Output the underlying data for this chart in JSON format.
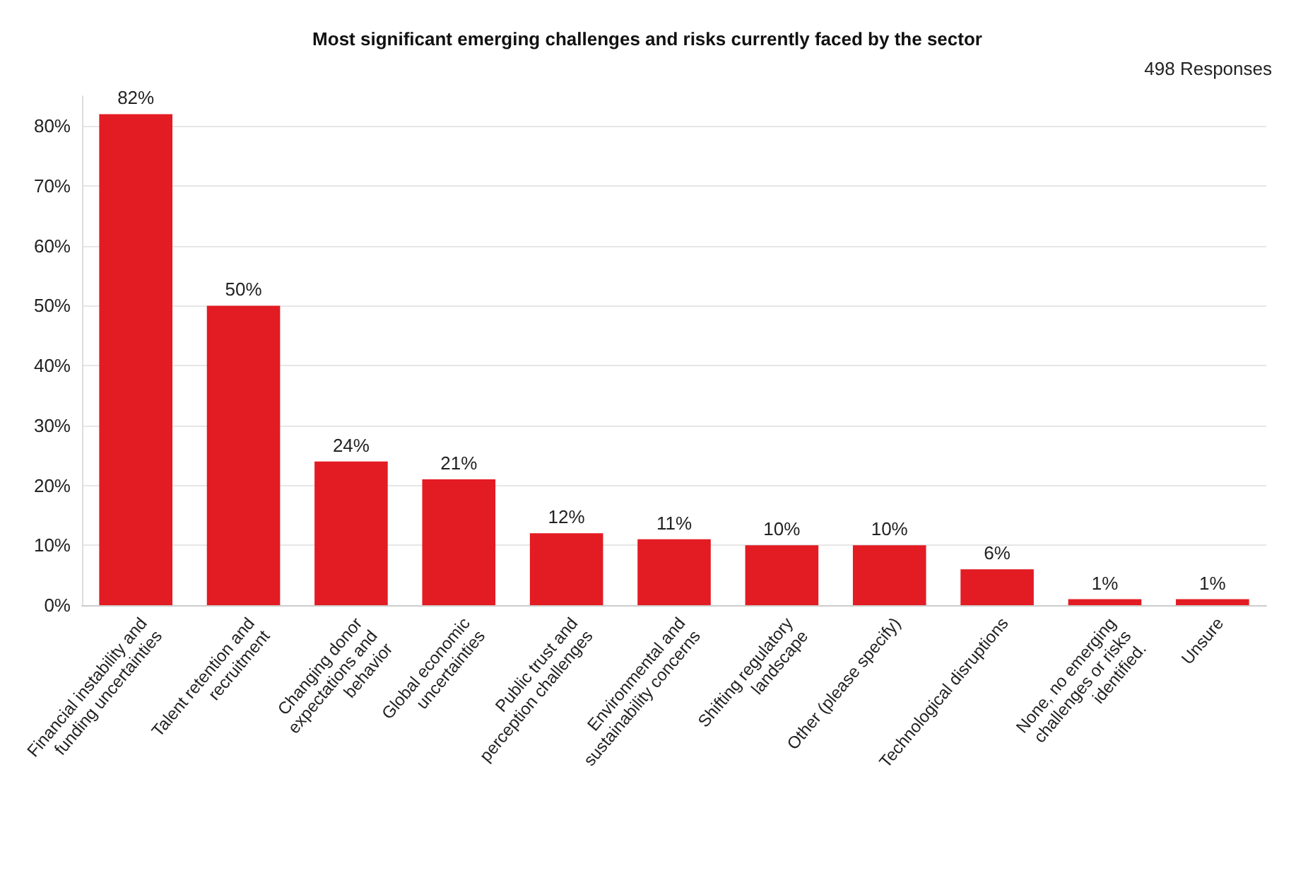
{
  "chart_data": {
    "type": "bar",
    "title": "Most significant emerging challenges and risks currently faced by the sector",
    "annotations": [
      "498 Responses"
    ],
    "categories": [
      "Financial instability and\nfunding uncertainties",
      "Talent retention and\nrecruitment",
      "Changing donor\nexpectations and\nbehavior",
      "Global economic\nuncertainties",
      "Public trust and\nperception challenges",
      "Environmental and\nsustainability concerns",
      "Shifting regulatory\nlandscape",
      "Other (please specify)",
      "Technological disruptions",
      "None, no emerging\nchallenges or risks\nidentified.",
      "Unsure"
    ],
    "values": [
      82,
      50,
      24,
      21,
      12,
      11,
      10,
      10,
      6,
      1,
      1
    ],
    "color": "#e31b23",
    "value_labels": [
      "82%",
      "50%",
      "24%",
      "21%",
      "12%",
      "11%",
      "10%",
      "10%",
      "6%",
      "1%",
      "1%"
    ],
    "ylim": [
      0,
      85
    ],
    "yticks": [
      {
        "value": 0,
        "label": "0%"
      },
      {
        "value": 10,
        "label": "10%"
      },
      {
        "value": 20,
        "label": "20%"
      },
      {
        "value": 30,
        "label": "30%"
      },
      {
        "value": 40,
        "label": "40%"
      },
      {
        "value": 50,
        "label": "50%"
      },
      {
        "value": 60,
        "label": "60%"
      },
      {
        "value": 70,
        "label": "70%"
      },
      {
        "value": 80,
        "label": "80%"
      }
    ],
    "grid": "y"
  }
}
